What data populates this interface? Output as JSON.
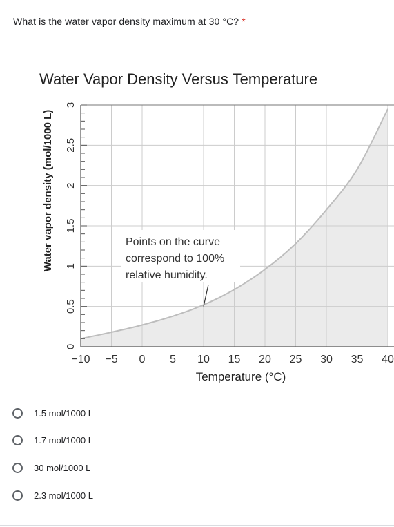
{
  "question": {
    "text": "What is the water vapor density maximum at 30 °C?",
    "required_mark": "*"
  },
  "chart_data": {
    "type": "area",
    "title": "Water Vapor Density Versus Temperature",
    "xlabel": "Temperature (°C)",
    "ylabel": "Water vapor density (mol/1000 L)",
    "x_tick_labels": [
      "−10",
      "−5",
      "0",
      "5",
      "10",
      "15",
      "20",
      "25",
      "30",
      "35",
      "40"
    ],
    "y_tick_labels": [
      "0",
      "0.5",
      "1",
      "1.5",
      "2",
      "2.5",
      "3"
    ],
    "xlim": [
      -10,
      40
    ],
    "ylim": [
      0,
      3
    ],
    "grid": true,
    "annotation": {
      "lines": [
        "Points on the curve",
        "correspond to 100%",
        "relative humidity."
      ],
      "points_to": [
        10,
        0.5
      ]
    },
    "series": [
      {
        "x": [
          -10,
          -5,
          0,
          5,
          10,
          15,
          20,
          25,
          30,
          35,
          40
        ],
        "y": [
          0.1,
          0.18,
          0.27,
          0.38,
          0.52,
          0.71,
          0.96,
          1.28,
          1.7,
          2.2,
          2.95
        ]
      }
    ],
    "fill_color": "#ebebeb",
    "line_color": "#bdbdbd",
    "grid_color": "#cccccc"
  },
  "options": [
    {
      "label": "1.5 mol/1000 L"
    },
    {
      "label": "1.7 mol/1000 L"
    },
    {
      "label": "30 mol/1000 L"
    },
    {
      "label": "2.3 mol/1000 L"
    }
  ]
}
